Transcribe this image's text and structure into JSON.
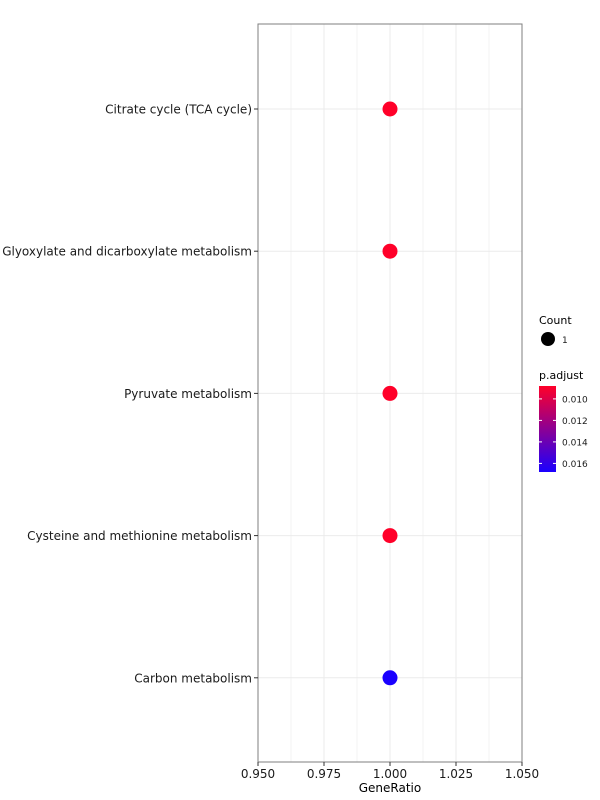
{
  "chart_data": {
    "type": "scatter",
    "xlabel": "GeneRatio",
    "xlim": [
      0.95,
      1.05
    ],
    "xticks": [
      "0.950",
      "0.975",
      "1.000",
      "1.025",
      "1.050"
    ],
    "xtick_values": [
      0.95,
      0.975,
      1.0,
      1.025,
      1.05
    ],
    "categories": [
      "Citrate cycle (TCA cycle)",
      "Glyoxylate and dicarboxylate metabolism",
      "Pyruvate metabolism",
      "Cysteine and methionine metabolism",
      "Carbon metabolism"
    ],
    "points": [
      {
        "term": "Citrate cycle (TCA cycle)",
        "gene_ratio": 1.0,
        "count": 1,
        "p_adjust": 0.0088
      },
      {
        "term": "Glyoxylate and dicarboxylate metabolism",
        "gene_ratio": 1.0,
        "count": 1,
        "p_adjust": 0.0088
      },
      {
        "term": "Pyruvate metabolism",
        "gene_ratio": 1.0,
        "count": 1,
        "p_adjust": 0.0088
      },
      {
        "term": "Cysteine and methionine metabolism",
        "gene_ratio": 1.0,
        "count": 1,
        "p_adjust": 0.0088
      },
      {
        "term": "Carbon metabolism",
        "gene_ratio": 1.0,
        "count": 1,
        "p_adjust": 0.0168
      }
    ],
    "legend": {
      "placement": "right",
      "size_title": "Count",
      "size_entries": [
        "1"
      ],
      "color_title": "p.adjust",
      "color_ticks": [
        "0.010",
        "0.012",
        "0.014",
        "0.016"
      ],
      "color_tick_values": [
        0.01,
        0.012,
        0.014,
        0.016
      ],
      "color_range": [
        0.0088,
        0.0168
      ],
      "color_low": "#ff0029",
      "color_high": "#1a00ff"
    },
    "grid": true
  },
  "colors": {
    "panel_border": "#7f7f7f",
    "grid": "#ebebeb",
    "size_legend_dot": "#000000"
  }
}
